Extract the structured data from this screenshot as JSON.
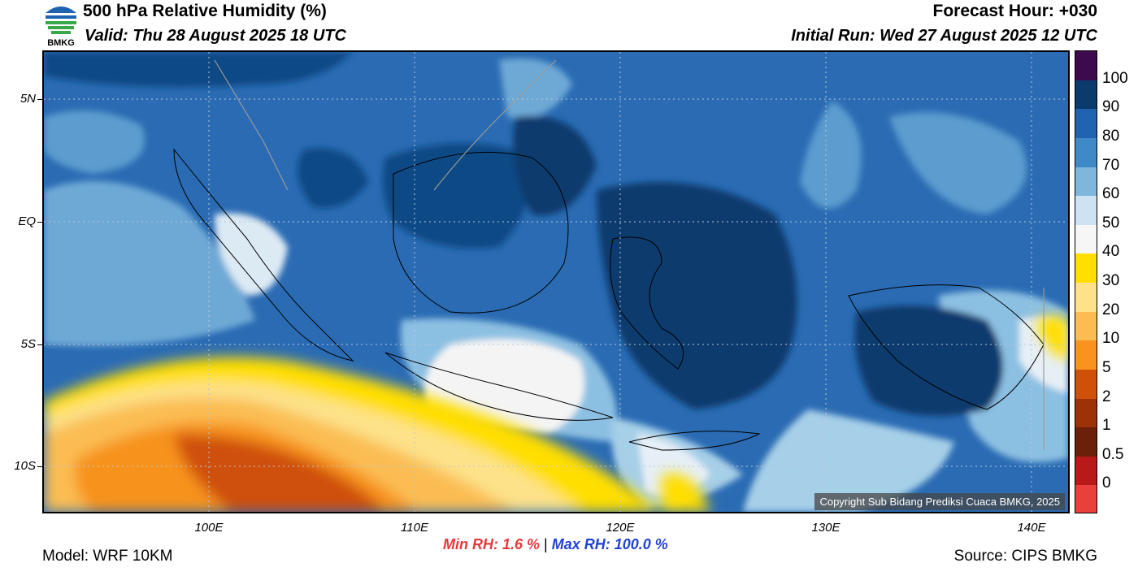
{
  "header": {
    "title": "500 hPa Relative Humidity (%)",
    "valid": "Valid: Thu 28 August 2025 18 UTC",
    "forecast_hour": "Forecast Hour: +030",
    "initial_run": "Initial Run: Wed 27 August 2025 12 UTC",
    "logo_text": "BMKG"
  },
  "map": {
    "lat_labels": [
      "5N",
      "EQ",
      "5S",
      "10S"
    ],
    "lon_labels": [
      "100E",
      "110E",
      "120E",
      "130E",
      "140E"
    ],
    "copyright": "Copyright Sub Bidang Prediksi Cuaca BMKG, 2025"
  },
  "colorbar": {
    "labels": [
      "100",
      "90",
      "80",
      "70",
      "60",
      "50",
      "40",
      "30",
      "20",
      "10",
      "5",
      "2",
      "1",
      "0.5",
      "0"
    ],
    "colors": [
      "#3d0a4d",
      "#0b3a6d",
      "#2064b0",
      "#3f8ac6",
      "#7fb6dc",
      "#cde3f1",
      "#f6f6f6",
      "#ffde00",
      "#fde28a",
      "#fbbd52",
      "#f7931e",
      "#cf5008",
      "#9b3208",
      "#6b200a",
      "#b81a1a",
      "#e8403a"
    ]
  },
  "stats": {
    "min_rh": "Min RH:   1.6 %",
    "separator": "|",
    "max_rh": "Max RH: 100.0 %",
    "min_color": "#e8383a",
    "max_color": "#2242d6"
  },
  "footer": {
    "model": "Model: WRF 10KM",
    "source": "Source: CIPS BMKG"
  }
}
